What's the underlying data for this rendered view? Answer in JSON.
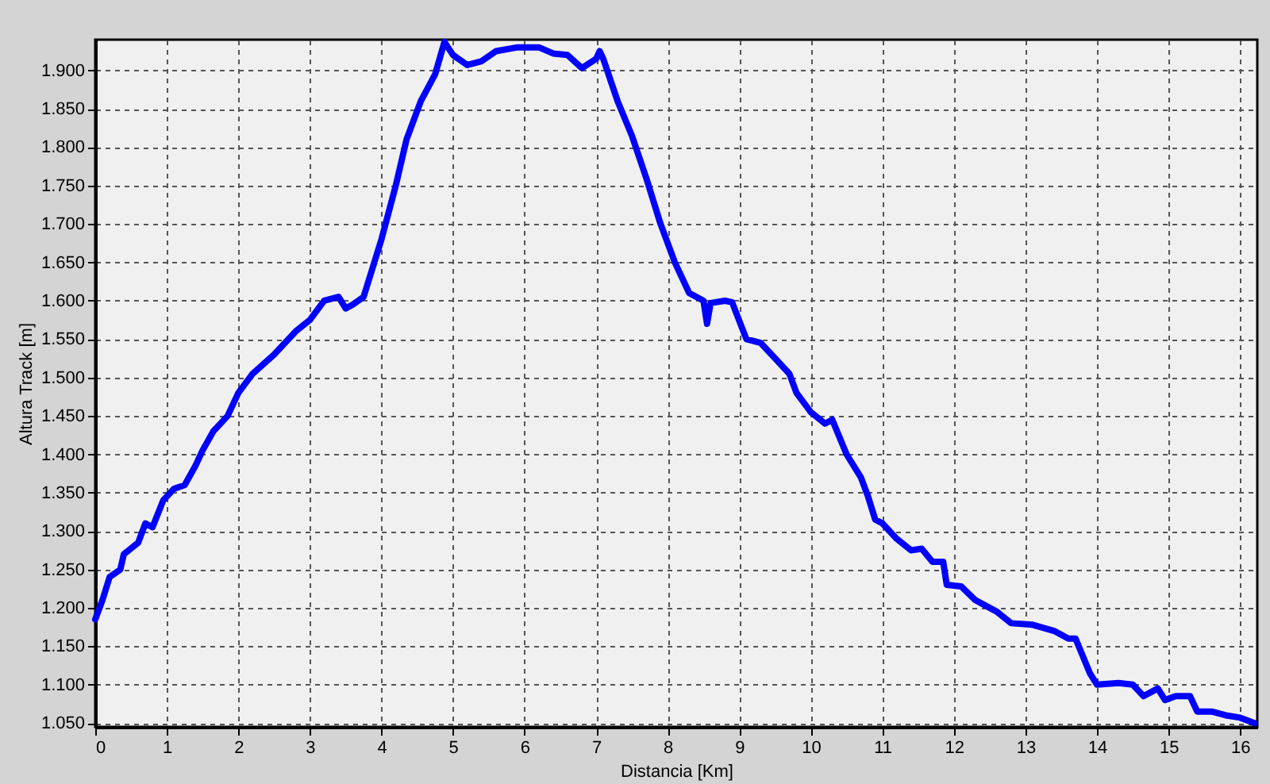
{
  "chart_data": {
    "type": "line",
    "xlabel": "Distancia [Km]",
    "ylabel": "Altura Track [m]",
    "x": [
      0,
      0.1,
      0.2,
      0.35,
      0.4,
      0.6,
      0.7,
      0.8,
      0.95,
      1.1,
      1.25,
      1.4,
      1.5,
      1.65,
      1.85,
      2.0,
      2.2,
      2.5,
      2.8,
      3.0,
      3.2,
      3.4,
      3.5,
      3.6,
      3.75,
      3.85,
      4.0,
      4.2,
      4.35,
      4.55,
      4.75,
      4.88,
      5.0,
      5.2,
      5.4,
      5.6,
      5.9,
      6.2,
      6.4,
      6.6,
      6.8,
      7.0,
      7.05,
      7.1,
      7.3,
      7.5,
      7.7,
      7.9,
      8.1,
      8.3,
      8.5,
      8.55,
      8.6,
      8.8,
      8.9,
      9.1,
      9.3,
      9.5,
      9.7,
      9.8,
      10.0,
      10.2,
      10.3,
      10.5,
      10.7,
      10.8,
      10.9,
      11.0,
      11.2,
      11.4,
      11.55,
      11.7,
      11.85,
      11.9,
      12.1,
      12.3,
      12.6,
      12.8,
      13.1,
      13.4,
      13.6,
      13.7,
      13.9,
      14.0,
      14.3,
      14.5,
      14.65,
      14.85,
      14.95,
      15.1,
      15.3,
      15.4,
      15.6,
      15.8,
      16.0,
      16.2
    ],
    "series": [
      {
        "color": "#0000ff",
        "values": [
          1185,
          1210,
          1240,
          1250,
          1270,
          1285,
          1310,
          1305,
          1340,
          1355,
          1360,
          1385,
          1405,
          1430,
          1450,
          1480,
          1505,
          1530,
          1560,
          1575,
          1600,
          1605,
          1590,
          1595,
          1605,
          1635,
          1680,
          1750,
          1810,
          1860,
          1895,
          1937,
          1920,
          1907,
          1912,
          1925,
          1930,
          1930,
          1922,
          1920,
          1903,
          1915,
          1925,
          1915,
          1860,
          1815,
          1760,
          1700,
          1650,
          1610,
          1600,
          1570,
          1597,
          1600,
          1598,
          1550,
          1545,
          1525,
          1505,
          1480,
          1455,
          1440,
          1445,
          1400,
          1370,
          1345,
          1315,
          1310,
          1290,
          1275,
          1277,
          1260,
          1260,
          1230,
          1228,
          1210,
          1195,
          1180,
          1178,
          1170,
          1160,
          1160,
          1115,
          1100,
          1102,
          1100,
          1085,
          1095,
          1080,
          1085,
          1085,
          1065,
          1065,
          1060,
          1057,
          1050
        ]
      }
    ],
    "xlim": [
      0,
      16.24
    ],
    "xticks": [
      0,
      1,
      2,
      3,
      4,
      5,
      6,
      7,
      8,
      9,
      10,
      11,
      12,
      13,
      14,
      15,
      16
    ],
    "ylim": [
      1045,
      1940
    ],
    "yticks": [
      {
        "value": 1050,
        "label": "1.050"
      },
      {
        "value": 1100,
        "label": "1.100"
      },
      {
        "value": 1150,
        "label": "1.150"
      },
      {
        "value": 1200,
        "label": "1.200"
      },
      {
        "value": 1250,
        "label": "1.250"
      },
      {
        "value": 1300,
        "label": "1.300"
      },
      {
        "value": 1350,
        "label": "1.350"
      },
      {
        "value": 1400,
        "label": "1.400"
      },
      {
        "value": 1450,
        "label": "1.450"
      },
      {
        "value": 1500,
        "label": "1.500"
      },
      {
        "value": 1550,
        "label": "1.550"
      },
      {
        "value": 1600,
        "label": "1.600"
      },
      {
        "value": 1650,
        "label": "1.650"
      },
      {
        "value": 1700,
        "label": "1.700"
      },
      {
        "value": 1750,
        "label": "1.750"
      },
      {
        "value": 1800,
        "label": "1.800"
      },
      {
        "value": 1850,
        "label": "1.850"
      },
      {
        "value": 1900,
        "label": "1.900"
      }
    ],
    "grid": true,
    "line_style": "solid"
  }
}
